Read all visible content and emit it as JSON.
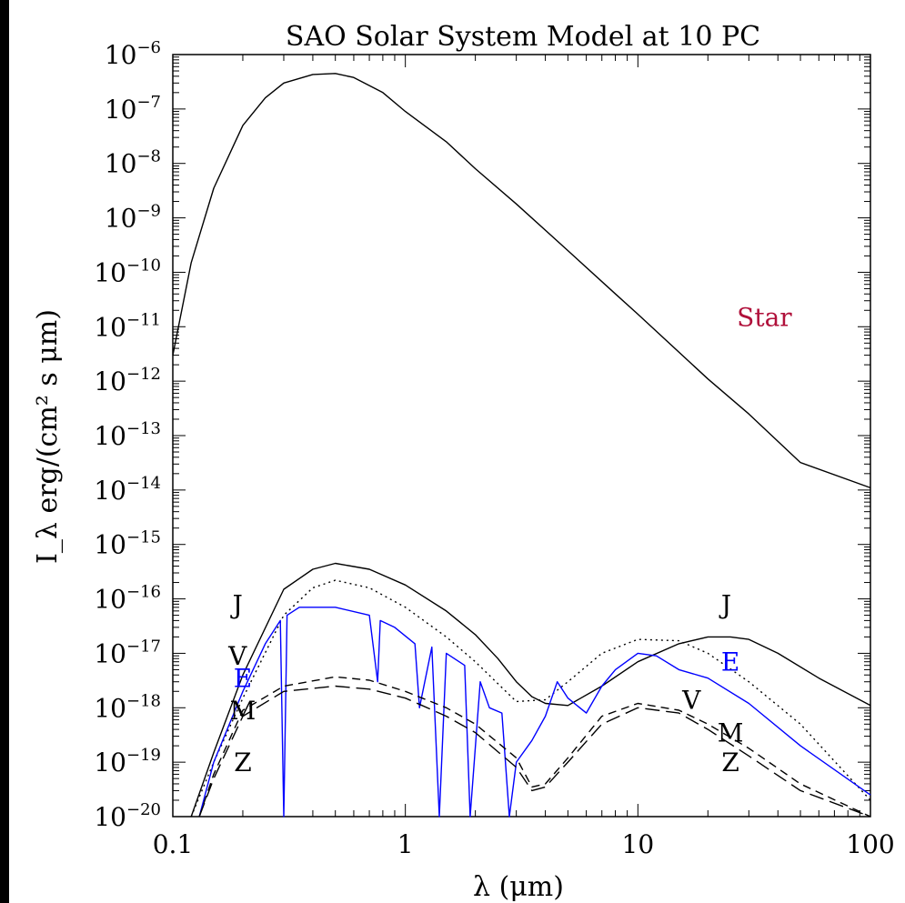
{
  "chart_data": {
    "type": "line",
    "title": "SAO Solar System Model at 10 PC",
    "xlabel": "λ (μm)",
    "ylabel": "I_λ erg/(cm² s μm)",
    "x_scale": "log",
    "y_scale": "log",
    "xlim": [
      0.1,
      100
    ],
    "ylim": [
      1e-20,
      1e-06
    ],
    "x_ticks": [
      "0.1",
      "1",
      "10",
      "100"
    ],
    "y_ticks": [
      "-20",
      "-19",
      "-18",
      "-17",
      "-16",
      "-15",
      "-14",
      "-13",
      "-12",
      "-11",
      "-10",
      "-9",
      "-8",
      "-7",
      "-6"
    ],
    "y_tick_base": "10",
    "colors": {
      "black": "#000000",
      "earth": "#0000ff",
      "star_label": "#b0103a"
    },
    "series": [
      {
        "name": "Star",
        "color": "#000000",
        "dash": "solid",
        "x": [
          0.1,
          0.12,
          0.15,
          0.2,
          0.25,
          0.3,
          0.4,
          0.5,
          0.6,
          0.8,
          1,
          1.5,
          2,
          3,
          5,
          8,
          10,
          20,
          30,
          50,
          100
        ],
        "y": [
          3e-12,
          1.5e-10,
          3.5e-09,
          5e-08,
          1.6e-07,
          3e-07,
          4.3e-07,
          4.5e-07,
          3.8e-07,
          2e-07,
          9e-08,
          2.5e-08,
          8e-09,
          1.8e-09,
          2.5e-10,
          4e-11,
          1.7e-11,
          1.1e-12,
          2.5e-13,
          3.2e-14,
          1.1e-14
        ]
      },
      {
        "name": "J",
        "color": "#000000",
        "dash": "solid",
        "x": [
          0.12,
          0.15,
          0.2,
          0.3,
          0.4,
          0.5,
          0.7,
          1,
          1.5,
          2,
          2.5,
          3,
          3.5,
          4,
          5,
          7,
          10,
          15,
          20,
          25,
          30,
          40,
          60,
          100
        ],
        "y": [
          1e-20,
          1.5e-19,
          4e-18,
          1.5e-16,
          3.5e-16,
          4.5e-16,
          3.5e-16,
          1.8e-16,
          6e-17,
          2.2e-17,
          8e-18,
          3e-18,
          1.6e-18,
          1.2e-18,
          1.1e-18,
          2.5e-18,
          7e-18,
          1.5e-17,
          2e-17,
          2e-17,
          1.8e-17,
          1e-17,
          3.5e-18,
          1.1e-18
        ]
      },
      {
        "name": "V",
        "color": "#000000",
        "dash": "dotted",
        "x": [
          0.12,
          0.15,
          0.2,
          0.3,
          0.4,
          0.5,
          0.7,
          1,
          1.5,
          2,
          3,
          4,
          5,
          7,
          10,
          15,
          20,
          30,
          50,
          100
        ],
        "y": [
          1e-20,
          1e-19,
          1.5e-18,
          5e-17,
          1.6e-16,
          2.2e-16,
          1.6e-16,
          7e-17,
          2e-17,
          7e-18,
          1.3e-18,
          1.4e-18,
          3e-18,
          1e-17,
          1.8e-17,
          1.7e-17,
          1e-17,
          3e-18,
          5e-19,
          2e-20
        ]
      },
      {
        "name": "E",
        "color": "#0000ff",
        "dash": "solid",
        "x": [
          0.13,
          0.15,
          0.2,
          0.25,
          0.29,
          0.3,
          0.31,
          0.35,
          0.5,
          0.7,
          0.76,
          0.78,
          0.9,
          1.1,
          1.15,
          1.3,
          1.4,
          1.5,
          1.8,
          1.9,
          2.1,
          2.3,
          2.6,
          2.8,
          3,
          3.5,
          4,
          4.5,
          5,
          6,
          7,
          8,
          10,
          12,
          15,
          20,
          30,
          50,
          100
        ],
        "y": [
          1e-20,
          1e-19,
          2e-18,
          1.5e-17,
          4e-17,
          1e-20,
          5e-17,
          7e-17,
          7e-17,
          5e-17,
          3e-18,
          4e-17,
          3e-17,
          1.5e-17,
          1e-18,
          1.3e-17,
          1e-20,
          1e-17,
          6e-18,
          1e-20,
          3e-18,
          1e-18,
          8e-19,
          1e-20,
          1e-19,
          2.5e-19,
          7e-19,
          3e-18,
          1.5e-18,
          8e-19,
          2.5e-18,
          5e-18,
          1e-17,
          9e-18,
          5e-18,
          3.5e-18,
          1.2e-18,
          2e-19,
          2.5e-20
        ]
      },
      {
        "name": "M",
        "color": "#000000",
        "dash": "dashed",
        "x": [
          0.13,
          0.15,
          0.2,
          0.3,
          0.5,
          0.7,
          1,
          1.5,
          2,
          3,
          3.5,
          4,
          5,
          7,
          10,
          15,
          20,
          30,
          50,
          100
        ],
        "y": [
          1e-20,
          6e-20,
          9e-19,
          2.5e-18,
          3.7e-18,
          3.2e-18,
          2e-18,
          1e-18,
          5e-19,
          1.2e-19,
          3.5e-20,
          4e-20,
          1.2e-19,
          7e-19,
          1.2e-18,
          9e-19,
          5e-19,
          1.8e-19,
          4e-20,
          1e-20
        ]
      },
      {
        "name": "Z",
        "color": "#000000",
        "dash": "longdash",
        "x": [
          0.13,
          0.15,
          0.2,
          0.3,
          0.5,
          0.7,
          1,
          1.5,
          2,
          3,
          3.5,
          4,
          5,
          7,
          10,
          15,
          20,
          30,
          50,
          100
        ],
        "y": [
          1e-20,
          5e-20,
          7e-19,
          2e-18,
          2.5e-18,
          2.2e-18,
          1.5e-18,
          7e-19,
          3.5e-19,
          8e-20,
          3e-20,
          3.5e-20,
          1e-19,
          5e-19,
          1e-18,
          8e-19,
          4e-19,
          1.3e-19,
          3e-20,
          1e-20
        ]
      }
    ],
    "annotations": [
      {
        "text": "Star",
        "x": 35,
        "y": 1.5e-11,
        "color": "#b0103a"
      },
      {
        "text": "J",
        "x": 0.19,
        "y": 8e-17,
        "color": "#000000"
      },
      {
        "text": "V",
        "x": 0.19,
        "y": 9e-18,
        "color": "#000000"
      },
      {
        "text": "E",
        "x": 0.2,
        "y": 3.5e-18,
        "color": "#0000ff"
      },
      {
        "text": "M",
        "x": 0.2,
        "y": 9e-19,
        "color": "#000000"
      },
      {
        "text": "Z",
        "x": 0.2,
        "y": 1e-19,
        "color": "#000000"
      },
      {
        "text": "J",
        "x": 24,
        "y": 8e-17,
        "color": "#000000"
      },
      {
        "text": "E",
        "x": 25,
        "y": 7e-18,
        "color": "#0000ff"
      },
      {
        "text": "V",
        "x": 17,
        "y": 1.4e-18,
        "color": "#000000"
      },
      {
        "text": "M",
        "x": 25,
        "y": 3.5e-19,
        "color": "#000000"
      },
      {
        "text": "Z",
        "x": 25,
        "y": 1e-19,
        "color": "#000000"
      }
    ],
    "grid": false,
    "legend": "none"
  }
}
